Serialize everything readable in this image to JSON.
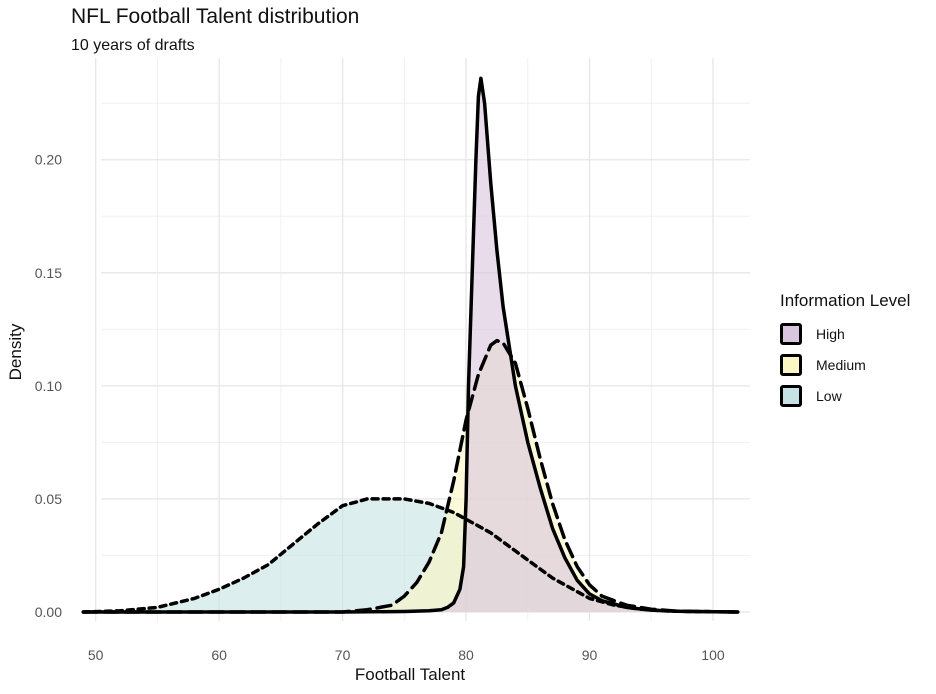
{
  "chart_data": {
    "type": "area",
    "title": "NFL Football Talent distribution",
    "subtitle": "10 years of drafts",
    "xlabel": "Football Talent",
    "ylabel": "Density",
    "xlim": [
      48,
      103
    ],
    "ylim": [
      -0.004,
      0.245
    ],
    "x_ticks": [
      "50",
      "60",
      "70",
      "80",
      "90",
      "100"
    ],
    "y_ticks": [
      "0.00",
      "0.05",
      "0.10",
      "0.15",
      "0.20"
    ],
    "grid": true,
    "legend": {
      "title": "Information Level",
      "position": "right"
    },
    "series": [
      {
        "name": "High",
        "color": "#d8c5de",
        "line_style": "solid",
        "x": [
          49,
          70,
          75,
          77,
          78,
          78.5,
          79,
          79.5,
          79.8,
          80,
          80.2,
          80.5,
          80.8,
          81,
          81.2,
          81.5,
          82,
          82.5,
          83,
          84,
          85,
          86,
          87,
          88,
          89,
          90,
          91,
          92,
          93,
          95,
          97,
          100,
          102
        ],
        "values": [
          0,
          0,
          0.0002,
          0.0005,
          0.001,
          0.002,
          0.004,
          0.01,
          0.02,
          0.05,
          0.1,
          0.15,
          0.2,
          0.228,
          0.236,
          0.225,
          0.19,
          0.16,
          0.135,
          0.1,
          0.075,
          0.055,
          0.037,
          0.024,
          0.014,
          0.008,
          0.005,
          0.0035,
          0.002,
          0.0008,
          0.0003,
          0.0001,
          0
        ]
      },
      {
        "name": "Medium",
        "color": "#fbf6c3",
        "line_style": "dashed",
        "x": [
          49,
          70,
          72,
          74,
          75,
          76,
          77,
          78,
          79,
          80,
          81,
          82,
          82.5,
          83,
          84,
          85,
          86,
          87,
          88,
          89,
          90,
          91,
          92,
          93,
          95,
          97,
          100,
          102
        ],
        "values": [
          0,
          0,
          0.001,
          0.003,
          0.007,
          0.013,
          0.022,
          0.035,
          0.058,
          0.085,
          0.105,
          0.118,
          0.12,
          0.119,
          0.11,
          0.09,
          0.068,
          0.048,
          0.032,
          0.02,
          0.012,
          0.007,
          0.005,
          0.003,
          0.0012,
          0.0004,
          0.0001,
          0
        ]
      },
      {
        "name": "Low",
        "color": "#c6e2e2",
        "line_style": "dotted",
        "x": [
          49,
          52,
          55,
          58,
          60,
          62,
          64,
          66,
          68,
          70,
          72,
          74,
          75,
          76,
          77,
          78,
          79,
          80,
          81,
          82,
          83,
          84,
          85,
          86,
          87,
          88,
          90,
          92,
          94,
          96,
          98,
          100,
          102
        ],
        "values": [
          0,
          0.0005,
          0.002,
          0.006,
          0.01,
          0.015,
          0.021,
          0.03,
          0.039,
          0.047,
          0.05,
          0.05,
          0.05,
          0.049,
          0.048,
          0.046,
          0.044,
          0.041,
          0.038,
          0.035,
          0.031,
          0.027,
          0.023,
          0.019,
          0.015,
          0.012,
          0.006,
          0.003,
          0.0013,
          0.0005,
          0.0002,
          0.0001,
          0
        ]
      }
    ]
  }
}
